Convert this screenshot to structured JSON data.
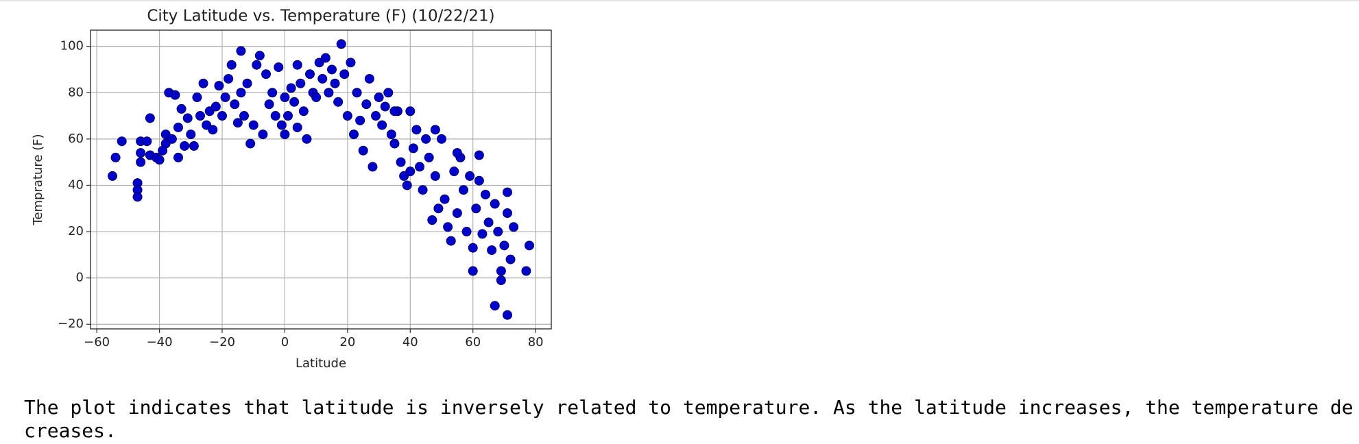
{
  "chart_data": {
    "type": "scatter",
    "title": "City Latitude vs. Temperature (F) (10/22/21)",
    "x_label": "Latitude",
    "y_label": "Temprature (F)",
    "color": "#0000cc",
    "edgecolor": "#00005a",
    "grid": true,
    "xlim": [
      -62,
      85
    ],
    "ylim": [
      -22,
      107
    ],
    "xticks": [
      {
        "value": -60,
        "label": "−60"
      },
      {
        "value": -40,
        "label": "−40"
      },
      {
        "value": -20,
        "label": "−20"
      },
      0,
      20,
      40,
      60,
      80
    ],
    "yticks": [
      {
        "value": -20,
        "label": "−20"
      },
      0,
      20,
      40,
      60,
      80,
      100
    ],
    "x": [
      -55,
      -54,
      -52,
      -47,
      -47,
      -47,
      -46,
      -46,
      -46,
      -44,
      -43,
      -43,
      -41,
      -40,
      -39,
      -38,
      -38,
      -37,
      -36,
      -35,
      -34,
      -34,
      -33,
      -32,
      -31,
      -30,
      -29,
      -28,
      -27,
      -26,
      -25,
      -24,
      -23,
      -22,
      -21,
      -20,
      -19,
      -18,
      -17,
      -16,
      -15,
      -14,
      -14,
      -13,
      -12,
      -11,
      -10,
      -9,
      -8,
      -7,
      -6,
      -5,
      -4,
      -3,
      -2,
      -1,
      0,
      0,
      1,
      2,
      3,
      4,
      4,
      5,
      6,
      7,
      8,
      9,
      10,
      11,
      12,
      13,
      14,
      15,
      16,
      17,
      18,
      19,
      20,
      21,
      22,
      23,
      24,
      25,
      26,
      27,
      28,
      29,
      30,
      31,
      32,
      33,
      34,
      35,
      36,
      37,
      38,
      39,
      40,
      41,
      42,
      43,
      44,
      45,
      46,
      47,
      48,
      49,
      50,
      51,
      52,
      53,
      54,
      55,
      56,
      57,
      58,
      59,
      60,
      60,
      61,
      62,
      63,
      64,
      65,
      66,
      67,
      67,
      68,
      69,
      69,
      70,
      71,
      71,
      72,
      73,
      77,
      78,
      71,
      62,
      48,
      35,
      40,
      55
    ],
    "values": [
      44,
      52,
      59,
      41,
      38,
      35,
      50,
      54,
      59,
      59,
      69,
      53,
      52,
      51,
      55,
      58,
      62,
      80,
      60,
      79,
      65,
      52,
      73,
      57,
      69,
      62,
      57,
      78,
      70,
      84,
      66,
      72,
      64,
      74,
      83,
      70,
      78,
      86,
      92,
      75,
      67,
      98,
      80,
      70,
      84,
      58,
      66,
      92,
      96,
      62,
      88,
      75,
      80,
      70,
      91,
      66,
      78,
      62,
      70,
      82,
      76,
      92,
      65,
      84,
      72,
      60,
      88,
      80,
      78,
      93,
      86,
      95,
      80,
      90,
      84,
      76,
      101,
      88,
      70,
      93,
      62,
      80,
      68,
      55,
      75,
      86,
      48,
      70,
      78,
      66,
      74,
      80,
      62,
      58,
      72,
      50,
      44,
      40,
      72,
      56,
      64,
      48,
      38,
      60,
      52,
      25,
      44,
      30,
      60,
      34,
      22,
      16,
      46,
      28,
      52,
      38,
      20,
      44,
      13,
      3,
      30,
      42,
      19,
      36,
      24,
      12,
      -12,
      32,
      20,
      -1,
      3,
      14,
      -16,
      28,
      8,
      22,
      3,
      14,
      37,
      53,
      64,
      72,
      46,
      54
    ]
  },
  "notes": {
    "text": "The plot indicates that latitude is inversely related to temperature. As the latitude increases, the temperature decreases."
  }
}
